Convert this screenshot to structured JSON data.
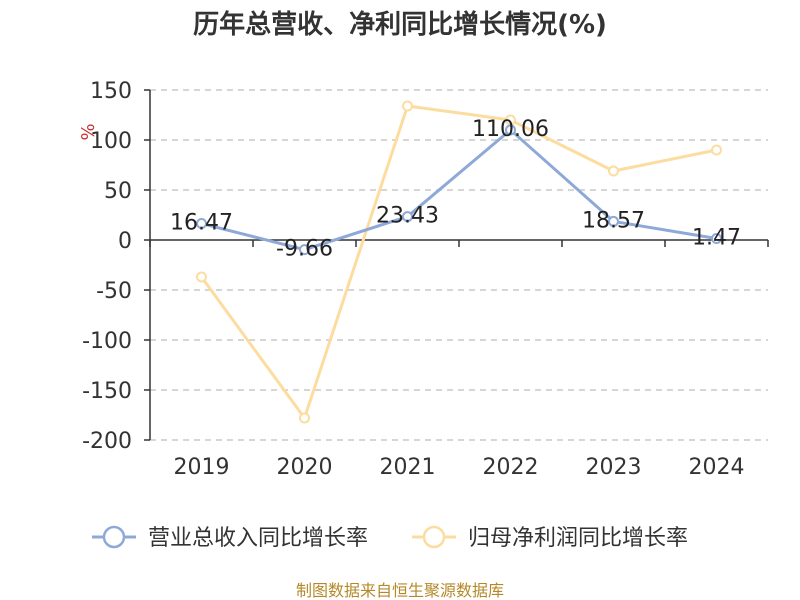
{
  "title": "历年总营收、净利同比增长情况(%)",
  "source": "制图数据来自恒生聚源数据库",
  "colors": {
    "revenue": "#8ea9d8",
    "profit": "#fcdc9f",
    "grid": "#c8c8c8",
    "axis": "#333333"
  },
  "chart_data": {
    "type": "line",
    "title": "历年总营收、净利同比增长情况(%)",
    "ylabel": "%",
    "xlabel": "",
    "categories": [
      "2019",
      "2020",
      "2021",
      "2022",
      "2023",
      "2024"
    ],
    "ylim": [
      -200,
      150
    ],
    "yticks": [
      150,
      100,
      50,
      0,
      -50,
      -100,
      -150,
      -200
    ],
    "grid": true,
    "legend_position": "bottom",
    "series": [
      {
        "name": "营业总收入同比增长率",
        "values": [
          16.47,
          -9.66,
          23.43,
          110.06,
          18.57,
          1.47
        ],
        "labels": [
          "16.47",
          "-9.66",
          "23.43",
          "110.06",
          "18.57",
          "1.47"
        ]
      },
      {
        "name": "归母净利润同比增长率",
        "values": [
          -37,
          -178,
          134,
          120,
          69,
          90
        ]
      }
    ]
  }
}
